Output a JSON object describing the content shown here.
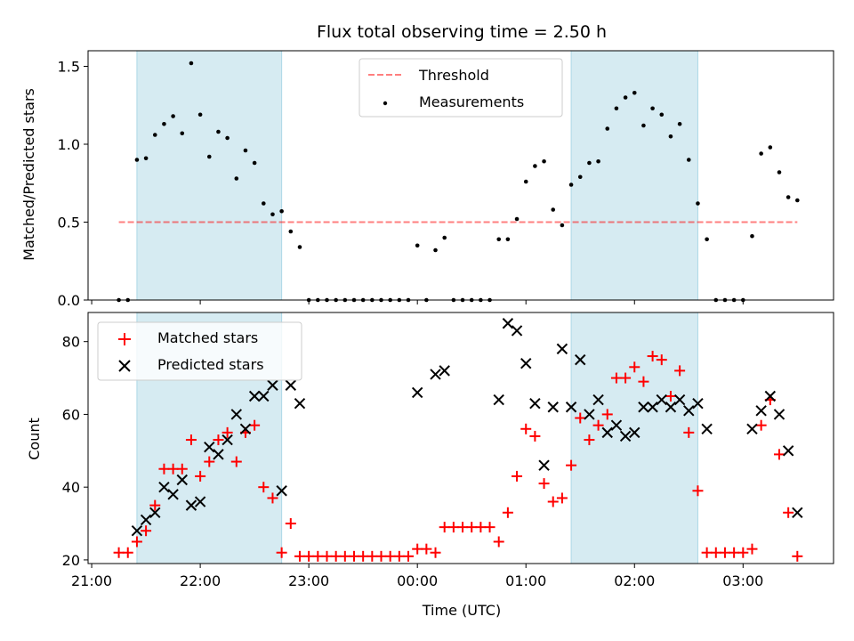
{
  "title": "Flux total observing time = 2.50 h",
  "colors": {
    "shade": "#add8e6",
    "threshold": "#ff0000",
    "matched": "#ff0000",
    "predicted": "#000000",
    "measurement": "#000000"
  },
  "chart_data": [
    {
      "type": "scatter",
      "ylabel": "Matched/Predicted stars",
      "ylim": [
        0,
        1.6
      ],
      "yticks": [
        "0.0",
        "0.5",
        "1.0",
        "1.5"
      ],
      "xlim": [
        "20:58",
        "03:50"
      ],
      "shaded_intervals": [
        [
          "21:25",
          "22:45"
        ],
        [
          "01:25",
          "02:35"
        ]
      ],
      "legend": {
        "position": "top-center",
        "entries": [
          "Threshold",
          "Measurements"
        ]
      },
      "threshold": {
        "name": "Threshold",
        "y": 0.5,
        "x": [
          "21:15",
          "03:30"
        ]
      },
      "series": [
        {
          "name": "Measurements",
          "points": [
            [
              "21:15",
              0
            ],
            [
              "21:20",
              0
            ],
            [
              "21:25",
              0.9
            ],
            [
              "21:30",
              0.91
            ],
            [
              "21:35",
              1.06
            ],
            [
              "21:40",
              1.13
            ],
            [
              "21:45",
              1.18
            ],
            [
              "21:50",
              1.07
            ],
            [
              "21:55",
              1.52
            ],
            [
              "22:00",
              1.19
            ],
            [
              "22:05",
              0.92
            ],
            [
              "22:10",
              1.08
            ],
            [
              "22:15",
              1.04
            ],
            [
              "22:20",
              0.78
            ],
            [
              "22:25",
              0.96
            ],
            [
              "22:30",
              0.88
            ],
            [
              "22:35",
              0.62
            ],
            [
              "22:40",
              0.55
            ],
            [
              "22:45",
              0.57
            ],
            [
              "22:50",
              0.44
            ],
            [
              "22:55",
              0.34
            ],
            [
              "23:00",
              0
            ],
            [
              "23:05",
              0
            ],
            [
              "23:10",
              0
            ],
            [
              "23:15",
              0
            ],
            [
              "23:20",
              0
            ],
            [
              "23:25",
              0
            ],
            [
              "23:30",
              0
            ],
            [
              "23:35",
              0
            ],
            [
              "23:40",
              0
            ],
            [
              "23:45",
              0
            ],
            [
              "23:50",
              0
            ],
            [
              "23:55",
              0
            ],
            [
              "00:00",
              0.35
            ],
            [
              "00:05",
              0
            ],
            [
              "00:10",
              0.32
            ],
            [
              "00:15",
              0.4
            ],
            [
              "00:20",
              0
            ],
            [
              "00:25",
              0
            ],
            [
              "00:30",
              0
            ],
            [
              "00:35",
              0
            ],
            [
              "00:40",
              0
            ],
            [
              "00:45",
              0.39
            ],
            [
              "00:50",
              0.39
            ],
            [
              "00:55",
              0.52
            ],
            [
              "01:00",
              0.76
            ],
            [
              "01:05",
              0.86
            ],
            [
              "01:10",
              0.89
            ],
            [
              "01:15",
              0.58
            ],
            [
              "01:20",
              0.48
            ],
            [
              "01:25",
              0.74
            ],
            [
              "01:30",
              0.79
            ],
            [
              "01:35",
              0.88
            ],
            [
              "01:40",
              0.89
            ],
            [
              "01:45",
              1.1
            ],
            [
              "01:50",
              1.23
            ],
            [
              "01:55",
              1.3
            ],
            [
              "02:00",
              1.33
            ],
            [
              "02:05",
              1.12
            ],
            [
              "02:10",
              1.23
            ],
            [
              "02:15",
              1.19
            ],
            [
              "02:20",
              1.05
            ],
            [
              "02:25",
              1.13
            ],
            [
              "02:30",
              0.9
            ],
            [
              "02:35",
              0.62
            ],
            [
              "02:40",
              0.39
            ],
            [
              "02:45",
              0
            ],
            [
              "02:50",
              0
            ],
            [
              "02:55",
              0
            ],
            [
              "03:00",
              0
            ],
            [
              "03:05",
              0.41
            ],
            [
              "03:10",
              0.94
            ],
            [
              "03:15",
              0.98
            ],
            [
              "03:20",
              0.82
            ],
            [
              "03:25",
              0.66
            ],
            [
              "03:30",
              0.64
            ]
          ]
        }
      ]
    },
    {
      "type": "scatter",
      "xlabel": "Time (UTC)",
      "ylabel": "Count",
      "ylim": [
        19,
        88
      ],
      "yticks": [
        "20",
        "40",
        "60",
        "80"
      ],
      "xlim": [
        "20:58",
        "03:50"
      ],
      "xticks": [
        "21:00",
        "22:00",
        "23:00",
        "00:00",
        "01:00",
        "02:00",
        "03:00"
      ],
      "shaded_intervals": [
        [
          "21:25",
          "22:45"
        ],
        [
          "01:25",
          "02:35"
        ]
      ],
      "legend": {
        "position": "top-left",
        "entries": [
          "Matched stars",
          "Predicted stars"
        ]
      },
      "series": [
        {
          "name": "Matched stars",
          "marker": "+",
          "points": [
            [
              "21:15",
              22
            ],
            [
              "21:20",
              22
            ],
            [
              "21:25",
              25
            ],
            [
              "21:30",
              28
            ],
            [
              "21:35",
              35
            ],
            [
              "21:40",
              45
            ],
            [
              "21:45",
              45
            ],
            [
              "21:50",
              45
            ],
            [
              "21:55",
              53
            ],
            [
              "22:00",
              43
            ],
            [
              "22:05",
              47
            ],
            [
              "22:10",
              53
            ],
            [
              "22:15",
              55
            ],
            [
              "22:20",
              47
            ],
            [
              "22:25",
              55
            ],
            [
              "22:30",
              57
            ],
            [
              "22:35",
              40
            ],
            [
              "22:40",
              37
            ],
            [
              "22:45",
              22
            ],
            [
              "22:50",
              30
            ],
            [
              "22:55",
              21
            ],
            [
              "23:00",
              21
            ],
            [
              "23:05",
              21
            ],
            [
              "23:10",
              21
            ],
            [
              "23:15",
              21
            ],
            [
              "23:20",
              21
            ],
            [
              "23:25",
              21
            ],
            [
              "23:30",
              21
            ],
            [
              "23:35",
              21
            ],
            [
              "23:40",
              21
            ],
            [
              "23:45",
              21
            ],
            [
              "23:50",
              21
            ],
            [
              "23:55",
              21
            ],
            [
              "00:00",
              23
            ],
            [
              "00:05",
              23
            ],
            [
              "00:10",
              22
            ],
            [
              "00:15",
              29
            ],
            [
              "00:20",
              29
            ],
            [
              "00:25",
              29
            ],
            [
              "00:30",
              29
            ],
            [
              "00:35",
              29
            ],
            [
              "00:40",
              29
            ],
            [
              "00:45",
              25
            ],
            [
              "00:50",
              33
            ],
            [
              "00:55",
              43
            ],
            [
              "01:00",
              56
            ],
            [
              "01:05",
              54
            ],
            [
              "01:10",
              41
            ],
            [
              "01:15",
              36
            ],
            [
              "01:20",
              37
            ],
            [
              "01:25",
              46
            ],
            [
              "01:30",
              59
            ],
            [
              "01:35",
              53
            ],
            [
              "01:40",
              57
            ],
            [
              "01:45",
              60
            ],
            [
              "01:50",
              70
            ],
            [
              "01:55",
              70
            ],
            [
              "02:00",
              73
            ],
            [
              "02:05",
              69
            ],
            [
              "02:10",
              76
            ],
            [
              "02:15",
              75
            ],
            [
              "02:20",
              65
            ],
            [
              "02:25",
              72
            ],
            [
              "02:30",
              55
            ],
            [
              "02:35",
              39
            ],
            [
              "02:40",
              22
            ],
            [
              "02:45",
              22
            ],
            [
              "02:50",
              22
            ],
            [
              "02:55",
              22
            ],
            [
              "03:00",
              22
            ],
            [
              "03:05",
              23
            ],
            [
              "03:10",
              57
            ],
            [
              "03:15",
              64
            ],
            [
              "03:20",
              49
            ],
            [
              "03:25",
              33
            ],
            [
              "03:30",
              21
            ]
          ]
        },
        {
          "name": "Predicted stars",
          "marker": "x",
          "points": [
            [
              "21:25",
              28
            ],
            [
              "21:30",
              31
            ],
            [
              "21:35",
              33
            ],
            [
              "21:40",
              40
            ],
            [
              "21:45",
              38
            ],
            [
              "21:50",
              42
            ],
            [
              "21:55",
              35
            ],
            [
              "22:00",
              36
            ],
            [
              "22:05",
              51
            ],
            [
              "22:10",
              49
            ],
            [
              "22:15",
              53
            ],
            [
              "22:20",
              60
            ],
            [
              "22:25",
              56
            ],
            [
              "22:30",
              65
            ],
            [
              "22:35",
              65
            ],
            [
              "22:40",
              68
            ],
            [
              "22:45",
              39
            ],
            [
              "22:50",
              68
            ],
            [
              "22:55",
              63
            ],
            [
              "00:00",
              66
            ],
            [
              "00:10",
              71
            ],
            [
              "00:15",
              72
            ],
            [
              "00:45",
              64
            ],
            [
              "00:50",
              85
            ],
            [
              "00:55",
              83
            ],
            [
              "01:00",
              74
            ],
            [
              "01:05",
              63
            ],
            [
              "01:10",
              46
            ],
            [
              "01:15",
              62
            ],
            [
              "01:20",
              78
            ],
            [
              "01:25",
              62
            ],
            [
              "01:30",
              75
            ],
            [
              "01:35",
              60
            ],
            [
              "01:40",
              64
            ],
            [
              "01:45",
              55
            ],
            [
              "01:50",
              57
            ],
            [
              "01:55",
              54
            ],
            [
              "02:00",
              55
            ],
            [
              "02:05",
              62
            ],
            [
              "02:10",
              62
            ],
            [
              "02:15",
              64
            ],
            [
              "02:20",
              62
            ],
            [
              "02:25",
              64
            ],
            [
              "02:30",
              61
            ],
            [
              "02:35",
              63
            ],
            [
              "02:40",
              56
            ],
            [
              "03:05",
              56
            ],
            [
              "03:10",
              61
            ],
            [
              "03:15",
              65
            ],
            [
              "03:20",
              60
            ],
            [
              "03:25",
              50
            ],
            [
              "03:30",
              33
            ]
          ]
        }
      ]
    }
  ]
}
